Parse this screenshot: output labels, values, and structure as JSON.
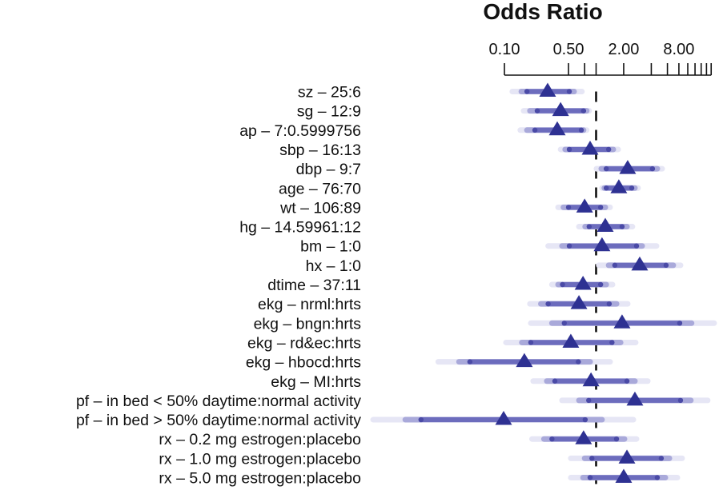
{
  "chart_data": {
    "type": "forest",
    "title": "Odds Ratio",
    "xscale": "log",
    "xlim": [
      0.1,
      18
    ],
    "x_ticks": [
      0.1,
      0.5,
      0.75,
      1,
      2,
      4,
      6,
      8,
      10,
      12,
      14,
      16,
      18
    ],
    "x_tick_labels": [
      {
        "value": 0.1,
        "label": "0.10"
      },
      {
        "value": 0.5,
        "label": "0.50"
      },
      {
        "value": 2,
        "label": "2.00"
      },
      {
        "value": 8,
        "label": "8.00"
      }
    ],
    "reference_line": 1,
    "interval_levels": [
      "0.99",
      "0.95",
      "0.90"
    ],
    "colors": {
      "point": "#2e3192",
      "interval_outer": "#e6e6f5",
      "interval_mid": "#a9a9da",
      "interval_inner": "#6c6cbd",
      "interval_dot": "#4a4aa6",
      "reference_line": "#111111",
      "text": "#111111"
    },
    "rows": [
      {
        "label": "sz – 25:6",
        "or": 0.296,
        "outer": [
          0.122,
          0.7
        ],
        "mid": [
          0.153,
          0.575
        ],
        "inner": [
          0.176,
          0.51
        ]
      },
      {
        "label": "sg – 12:9",
        "or": 0.41,
        "outer": [
          0.162,
          0.84
        ],
        "mid": [
          0.19,
          0.79
        ],
        "inner": [
          0.228,
          0.73
        ]
      },
      {
        "label": "ap – 7:0.5999756",
        "or": 0.377,
        "outer": [
          0.149,
          0.79
        ],
        "mid": [
          0.176,
          0.73
        ],
        "inner": [
          0.215,
          0.69
        ]
      },
      {
        "label": "sbp – 16:13",
        "or": 0.86,
        "outer": [
          0.41,
          1.74
        ],
        "mid": [
          0.46,
          1.54
        ],
        "inner": [
          0.51,
          1.37
        ]
      },
      {
        "label": "dbp – 9:7",
        "or": 2.21,
        "outer": [
          1.01,
          5.25
        ],
        "mid": [
          1.14,
          4.65
        ],
        "inner": [
          1.29,
          4.12
        ]
      },
      {
        "label": "age – 76:70",
        "or": 1.77,
        "outer": [
          1.16,
          2.87
        ],
        "mid": [
          1.23,
          2.65
        ],
        "inner": [
          1.29,
          2.45
        ]
      },
      {
        "label": "wt – 106:89",
        "or": 0.75,
        "outer": [
          0.385,
          1.42
        ],
        "mid": [
          0.44,
          1.26
        ],
        "inner": [
          0.5,
          1.12
        ]
      },
      {
        "label": "hg – 14.59961:12",
        "or": 1.26,
        "outer": [
          0.65,
          2.49
        ],
        "mid": [
          0.76,
          2.17
        ],
        "inner": [
          0.84,
          1.92
        ]
      },
      {
        "label": "bm – 1:0",
        "or": 1.16,
        "outer": [
          0.3,
          4.56
        ],
        "mid": [
          0.425,
          3.18
        ],
        "inner": [
          0.51,
          2.76
        ]
      },
      {
        "label": "hx – 1:0",
        "or": 2.99,
        "outer": [
          1.07,
          8.34
        ],
        "mid": [
          1.37,
          6.95
        ],
        "inner": [
          1.6,
          5.8
        ]
      },
      {
        "label": "dtime – 37:11",
        "or": 0.72,
        "outer": [
          0.33,
          1.51
        ],
        "mid": [
          0.385,
          1.29
        ],
        "inner": [
          0.43,
          1.12
        ]
      },
      {
        "label": "ekg – nrml:hrts",
        "or": 0.65,
        "outer": [
          0.19,
          2.21
        ],
        "mid": [
          0.25,
          1.67
        ],
        "inner": [
          0.3,
          1.39
        ]
      },
      {
        "label": "ekg – bngn:hrts",
        "or": 1.92,
        "outer": [
          0.194,
          19.4
        ],
        "mid": [
          0.33,
          11.0
        ],
        "inner": [
          0.45,
          8.17
        ]
      },
      {
        "label": "ekg – rd&ec:hrts",
        "or": 0.53,
        "outer": [
          0.104,
          2.7
        ],
        "mid": [
          0.155,
          1.85
        ],
        "inner": [
          0.194,
          1.49
        ]
      },
      {
        "label": "ekg – hbocd:hrts",
        "or": 0.165,
        "outer": [
          0.019,
          1.42
        ],
        "mid": [
          0.032,
          0.86
        ],
        "inner": [
          0.042,
          0.64
        ]
      },
      {
        "label": "ekg – MI:hrts",
        "or": 0.88,
        "outer": [
          0.206,
          3.66
        ],
        "mid": [
          0.29,
          2.65
        ],
        "inner": [
          0.355,
          2.17
        ]
      },
      {
        "label": "pf – in bed < 50% daytime:normal activity",
        "or": 2.65,
        "outer": [
          0.425,
          16.5
        ],
        "mid": [
          0.65,
          10.8
        ],
        "inner": [
          0.83,
          8.34
        ]
      },
      {
        "label": "pf – in bed > 50% daytime:normal activity",
        "or": 0.098,
        "outer": [
          0.0037,
          2.55
        ],
        "mid": [
          0.0083,
          1.16
        ],
        "inner": [
          0.0123,
          0.76
        ]
      },
      {
        "label": "rx – 0.2 mg estrogen:placebo",
        "or": 0.73,
        "outer": [
          0.2,
          2.76
        ],
        "mid": [
          0.27,
          2.04
        ],
        "inner": [
          0.33,
          1.67
        ]
      },
      {
        "label": "rx – 1.0 mg estrogen:placebo",
        "or": 2.17,
        "outer": [
          0.53,
          8.67
        ],
        "mid": [
          0.75,
          6.3
        ],
        "inner": [
          0.9,
          5.14
        ]
      },
      {
        "label": "rx – 5.0 mg estrogen:placebo",
        "or": 2.0,
        "outer": [
          0.53,
          7.7
        ],
        "mid": [
          0.72,
          5.69
        ],
        "inner": [
          0.86,
          4.65
        ]
      }
    ]
  }
}
